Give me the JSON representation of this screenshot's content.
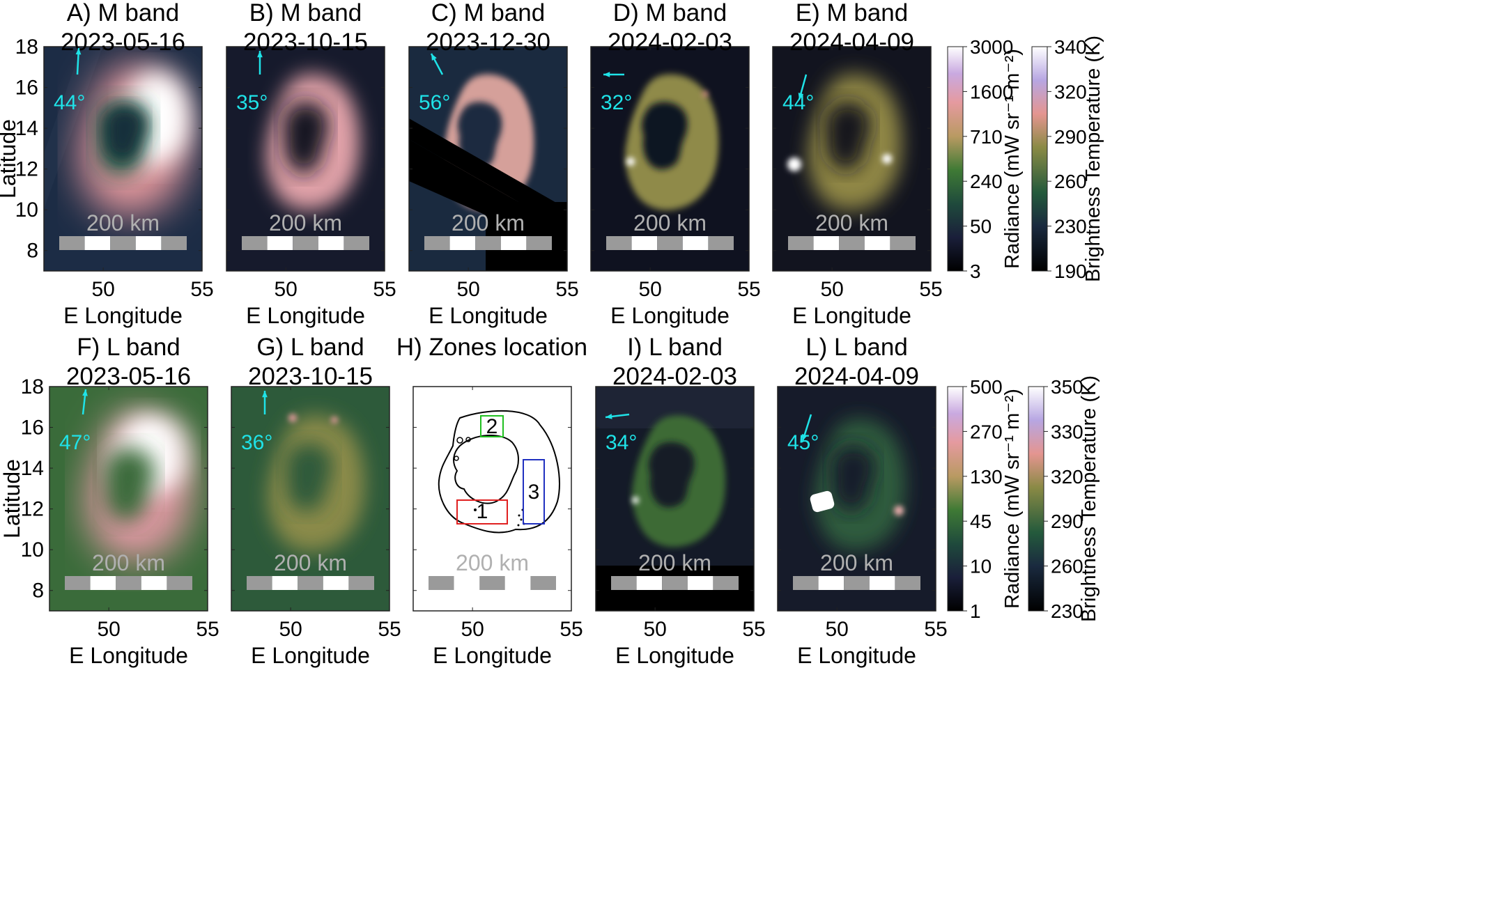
{
  "figure": {
    "y_axis_label": "Latitude",
    "x_axis_label": "E Longitude",
    "x_ticks": [
      "50",
      "55"
    ],
    "y_ticks": [
      "18",
      "16",
      "14",
      "12",
      "10",
      "8"
    ],
    "scale_bar_label": "200 km",
    "zones_title": "H) Zones location",
    "zone_labels": [
      "1",
      "2",
      "3"
    ],
    "zone_colors": [
      "#e02020",
      "#20c020",
      "#2030c0"
    ]
  },
  "panels_top": [
    {
      "title": "A)   M band",
      "date": "2023-05-16",
      "angle": "44°"
    },
    {
      "title": "B)   M band",
      "date": "2023-10-15",
      "angle": "35°"
    },
    {
      "title": "C)   M band",
      "date": "2023-12-30",
      "angle": "56°"
    },
    {
      "title": "D)   M band",
      "date": "2024-02-03",
      "angle": "32°"
    },
    {
      "title": "E)   M band",
      "date": "2024-04-09",
      "angle": "44°"
    }
  ],
  "panels_bottom": [
    {
      "title": "F)   L band",
      "date": "2023-05-16",
      "angle": "47°"
    },
    {
      "title": "G)   L band",
      "date": "2023-10-15",
      "angle": "36°"
    },
    {
      "title": "I)   L band",
      "date": "2024-02-03",
      "angle": "34°"
    },
    {
      "title": "L)   L band",
      "date": "2024-04-09",
      "angle": "45°"
    }
  ],
  "colorbars": {
    "m_radiance": {
      "label": "Radiance (mW sr⁻¹ m⁻²)",
      "ticks": [
        "3000",
        "1600",
        "710",
        "240",
        "50",
        "3"
      ]
    },
    "m_temperature": {
      "label": "Brightness Temperature (K)",
      "ticks": [
        "340",
        "320",
        "290",
        "260",
        "230",
        "190"
      ]
    },
    "l_radiance": {
      "label": "Radiance (mW sr⁻¹ m⁻²)",
      "ticks": [
        "500",
        "270",
        "130",
        "45",
        "10",
        "1"
      ]
    },
    "l_temperature": {
      "label": "Brightness Temperature (K)",
      "ticks": [
        "350",
        "330",
        "320",
        "290",
        "260",
        "230"
      ]
    }
  }
}
